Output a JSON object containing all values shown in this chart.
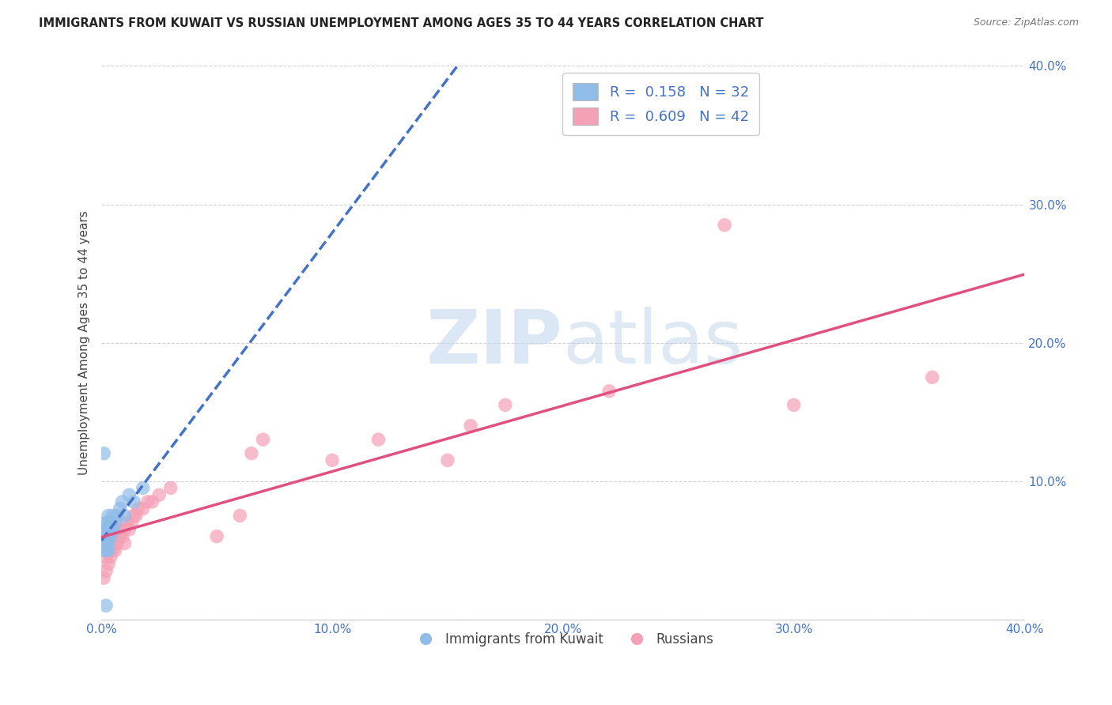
{
  "title": "IMMIGRANTS FROM KUWAIT VS RUSSIAN UNEMPLOYMENT AMONG AGES 35 TO 44 YEARS CORRELATION CHART",
  "source": "Source: ZipAtlas.com",
  "ylabel": "Unemployment Among Ages 35 to 44 years",
  "xlim": [
    0.0,
    0.4
  ],
  "ylim": [
    0.0,
    0.4
  ],
  "xticks": [
    0.0,
    0.1,
    0.2,
    0.3,
    0.4
  ],
  "yticks": [
    0.0,
    0.1,
    0.2,
    0.3,
    0.4
  ],
  "xtick_labels": [
    "0.0%",
    "10.0%",
    "20.0%",
    "30.0%",
    "40.0%"
  ],
  "ytick_labels": [
    "",
    "10.0%",
    "20.0%",
    "30.0%",
    "40.0%"
  ],
  "grid_color": "#cccccc",
  "background_color": "#ffffff",
  "watermark_zip": "ZIP",
  "watermark_atlas": "atlas",
  "kuwait_color": "#90bce8",
  "kuwait_line_color": "#4472c4",
  "russia_color": "#f4a0b5",
  "russia_line_color": "#e05080",
  "legend_R_kuwait": "0.158",
  "legend_N_kuwait": "32",
  "legend_R_russia": "0.609",
  "legend_N_russia": "42",
  "tick_color": "#4472c4",
  "kuwait_x": [
    0.001,
    0.001,
    0.001,
    0.001,
    0.002,
    0.002,
    0.002,
    0.002,
    0.002,
    0.002,
    0.003,
    0.003,
    0.003,
    0.003,
    0.003,
    0.003,
    0.003,
    0.004,
    0.004,
    0.004,
    0.005,
    0.005,
    0.006,
    0.007,
    0.008,
    0.009,
    0.01,
    0.012,
    0.014,
    0.018,
    0.001,
    0.002
  ],
  "kuwait_y": [
    0.05,
    0.055,
    0.06,
    0.065,
    0.05,
    0.055,
    0.06,
    0.06,
    0.065,
    0.07,
    0.05,
    0.055,
    0.06,
    0.065,
    0.065,
    0.07,
    0.075,
    0.06,
    0.065,
    0.07,
    0.065,
    0.075,
    0.07,
    0.075,
    0.08,
    0.085,
    0.075,
    0.09,
    0.085,
    0.095,
    0.12,
    0.01
  ],
  "russia_x": [
    0.001,
    0.002,
    0.002,
    0.003,
    0.003,
    0.004,
    0.004,
    0.005,
    0.005,
    0.006,
    0.006,
    0.007,
    0.007,
    0.008,
    0.008,
    0.009,
    0.01,
    0.01,
    0.011,
    0.012,
    0.013,
    0.014,
    0.015,
    0.016,
    0.018,
    0.02,
    0.022,
    0.025,
    0.03,
    0.05,
    0.06,
    0.065,
    0.07,
    0.1,
    0.12,
    0.15,
    0.16,
    0.175,
    0.22,
    0.27,
    0.3,
    0.36
  ],
  "russia_y": [
    0.03,
    0.035,
    0.045,
    0.04,
    0.05,
    0.045,
    0.055,
    0.05,
    0.06,
    0.05,
    0.06,
    0.055,
    0.065,
    0.06,
    0.065,
    0.06,
    0.055,
    0.065,
    0.07,
    0.065,
    0.07,
    0.075,
    0.075,
    0.08,
    0.08,
    0.085,
    0.085,
    0.09,
    0.095,
    0.06,
    0.075,
    0.12,
    0.13,
    0.115,
    0.13,
    0.115,
    0.14,
    0.155,
    0.165,
    0.285,
    0.155,
    0.175
  ]
}
